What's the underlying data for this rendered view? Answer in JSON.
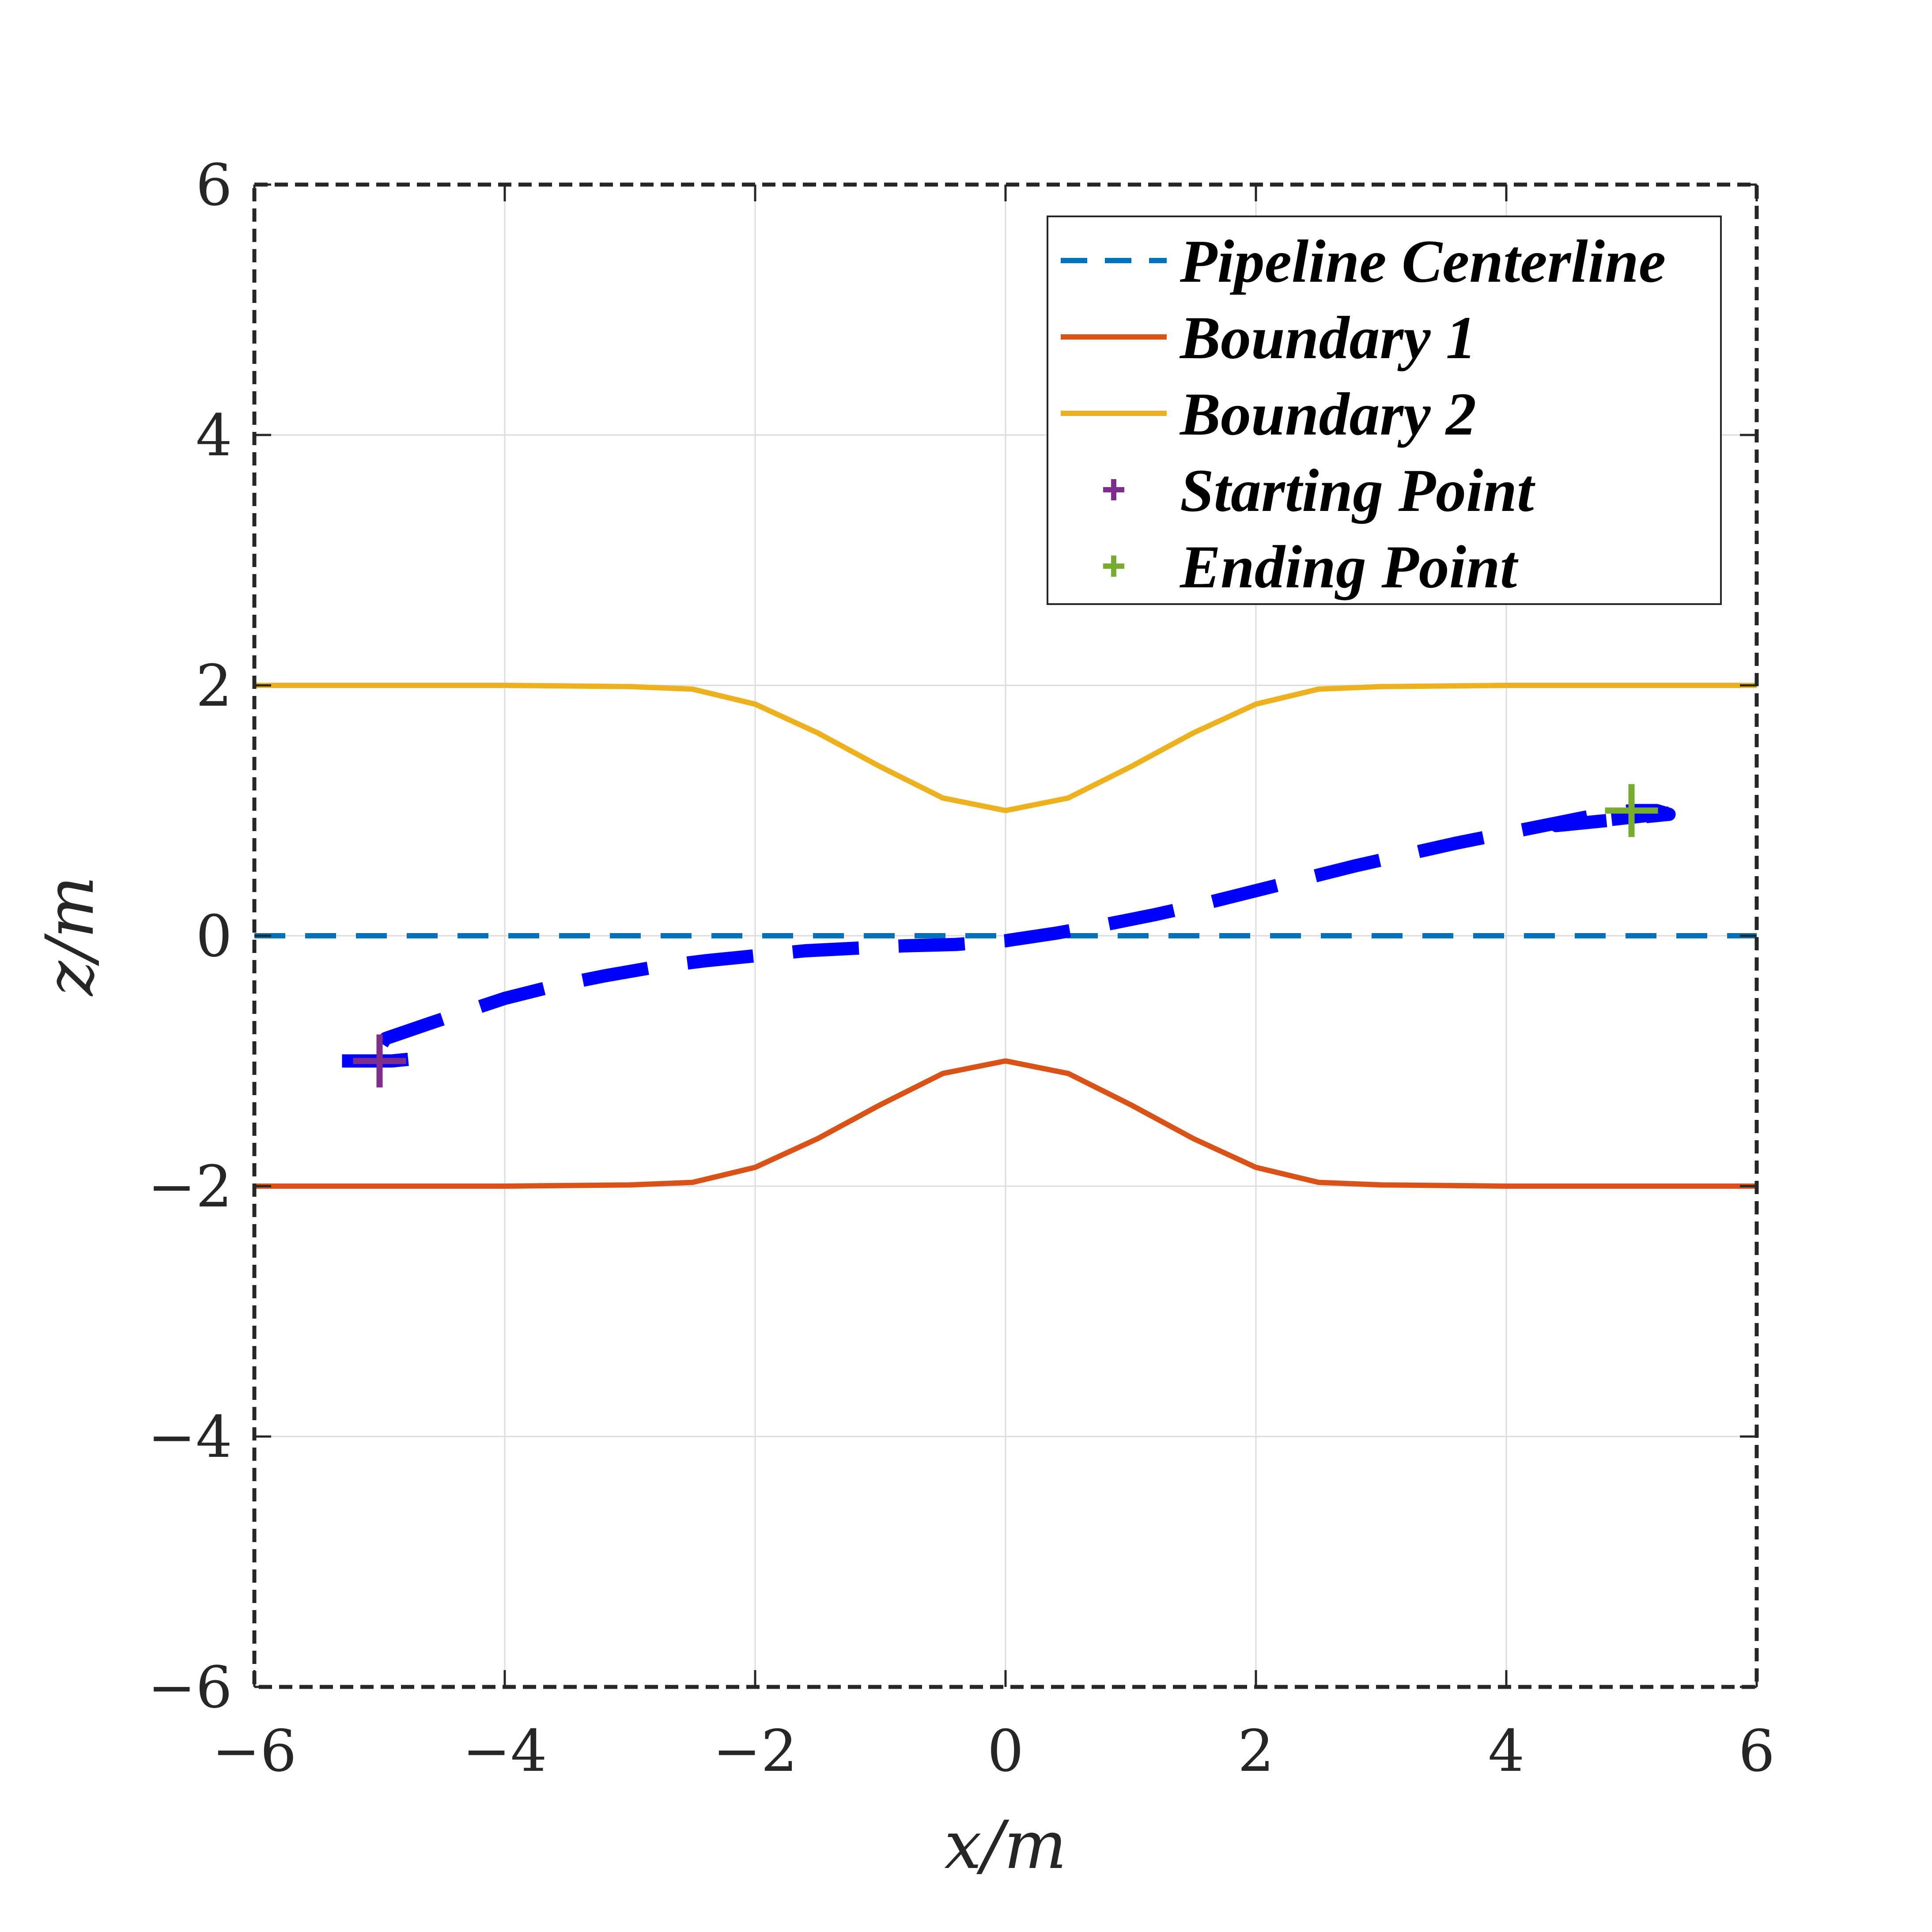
{
  "chart_data": {
    "type": "line",
    "xlabel": "x/m",
    "ylabel": "z/m",
    "xlim": [
      -6,
      6
    ],
    "ylim": [
      -6,
      6
    ],
    "xticks": [
      -6,
      -4,
      -2,
      0,
      2,
      4,
      6
    ],
    "yticks": [
      -6,
      -4,
      -2,
      0,
      2,
      4,
      6
    ],
    "grid": true,
    "legend_position": "top-right",
    "series": [
      {
        "name": "Pipeline Centerline",
        "color": "#0072BD",
        "style": "dashed",
        "x": [
          -6,
          6
        ],
        "y": [
          0,
          0
        ]
      },
      {
        "name": "Boundary 1",
        "color": "#D95319",
        "style": "solid",
        "x": [
          -6,
          -5,
          -4,
          -3,
          -2.5,
          -2,
          -1.5,
          -1,
          -0.5,
          0,
          0.5,
          1,
          1.5,
          2,
          2.5,
          3,
          4,
          5,
          6
        ],
        "y": [
          -2,
          -2,
          -2,
          -1.99,
          -1.97,
          -1.85,
          -1.62,
          -1.35,
          -1.1,
          -1.0,
          -1.1,
          -1.35,
          -1.62,
          -1.85,
          -1.97,
          -1.99,
          -2,
          -2,
          -2
        ]
      },
      {
        "name": "Boundary 2",
        "color": "#EDB120",
        "style": "solid",
        "x": [
          -6,
          -5,
          -4,
          -3,
          -2.5,
          -2,
          -1.5,
          -1,
          -0.5,
          0,
          0.5,
          1,
          1.5,
          2,
          2.5,
          3,
          4,
          5,
          6
        ],
        "y": [
          2,
          2,
          2,
          1.99,
          1.97,
          1.85,
          1.62,
          1.35,
          1.1,
          1.0,
          1.1,
          1.35,
          1.62,
          1.85,
          1.97,
          1.99,
          2,
          2,
          2
        ]
      },
      {
        "name": "Starting Point",
        "color": "#7E2F8E",
        "style": "marker-plus",
        "x": [
          -5
        ],
        "y": [
          -1
        ]
      },
      {
        "name": "Ending Point",
        "color": "#77AC30",
        "style": "marker-plus",
        "x": [
          5
        ],
        "y": [
          1
        ]
      }
    ],
    "trajectory": {
      "color": "#0000FF",
      "style": "dashed-thick",
      "x": [
        -5.3,
        -5.1,
        -4.9,
        -4.7,
        -4.95,
        -4.6,
        -4.3,
        -4.0,
        -3.6,
        -3.2,
        -2.8,
        -2.4,
        -2.0,
        -1.6,
        -1.2,
        -0.8,
        -0.4,
        0.0,
        0.4,
        0.8,
        1.2,
        1.6,
        2.0,
        2.4,
        2.8,
        3.2,
        3.6,
        4.0,
        4.4,
        4.7,
        5.0,
        5.2,
        5.3,
        5.1,
        4.4,
        5.3
      ],
      "y": [
        -1.0,
        -1.0,
        -1.0,
        -0.98,
        -0.82,
        -0.7,
        -0.6,
        -0.5,
        -0.4,
        -0.32,
        -0.25,
        -0.2,
        -0.16,
        -0.12,
        -0.1,
        -0.08,
        -0.07,
        -0.04,
        0.02,
        0.09,
        0.17,
        0.26,
        0.36,
        0.46,
        0.56,
        0.65,
        0.74,
        0.82,
        0.9,
        0.96,
        1.0,
        1.0,
        0.97,
        0.95,
        0.88,
        0.98
      ]
    }
  }
}
